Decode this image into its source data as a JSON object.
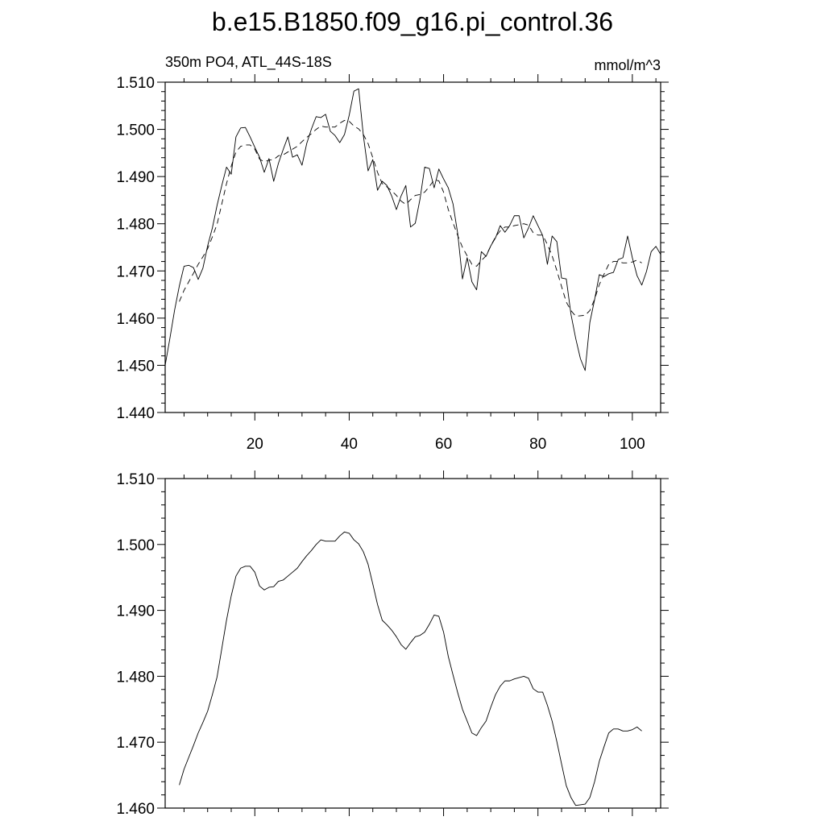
{
  "chart_data": [
    {
      "type": "line",
      "title": "b.e15.B1850.f09_g16.pi_control.36",
      "left_label": "350m PO4, ATL_44S-18S",
      "right_label": "mmol/m^3",
      "xlim": [
        1,
        106
      ],
      "xticks": [
        20,
        40,
        60,
        80,
        100
      ],
      "xminor": 3,
      "ylim": [
        1.44,
        1.51
      ],
      "yticks": [
        {
          "value": 1.44,
          "label": "1.440"
        },
        {
          "value": 1.45,
          "label": "1.450"
        },
        {
          "value": 1.46,
          "label": "1.460"
        },
        {
          "value": 1.47,
          "label": "1.470"
        },
        {
          "value": 1.48,
          "label": "1.480"
        },
        {
          "value": 1.49,
          "label": "1.490"
        },
        {
          "value": 1.5,
          "label": "1.500"
        },
        {
          "value": 1.51,
          "label": "1.510"
        }
      ],
      "yminor": 4,
      "series": [
        {
          "color": "#000000",
          "line_style": "solid",
          "x": [
            1,
            2,
            3,
            4,
            5,
            6,
            7,
            8,
            9,
            10,
            11,
            12,
            13,
            14,
            15,
            16,
            17,
            18,
            19,
            20,
            21,
            22,
            23,
            24,
            25,
            26,
            27,
            28,
            29,
            30,
            31,
            32,
            33,
            34,
            35,
            36,
            37,
            38,
            39,
            40,
            41,
            42,
            43,
            44,
            45,
            46,
            47,
            48,
            49,
            50,
            51,
            52,
            53,
            54,
            55,
            56,
            57,
            58,
            59,
            60,
            61,
            62,
            63,
            64,
            65,
            66,
            67,
            68,
            69,
            70,
            71,
            72,
            73,
            74,
            75,
            76,
            77,
            78,
            79,
            80,
            81,
            82,
            83,
            84,
            85,
            86,
            87,
            88,
            89,
            90,
            91,
            92,
            93,
            94,
            95,
            96,
            97,
            98,
            99,
            100,
            101,
            102,
            103,
            104,
            105,
            106
          ],
          "values": [
            1.45,
            1.4557,
            1.4617,
            1.4668,
            1.471,
            1.4712,
            1.4707,
            1.4682,
            1.4706,
            1.4753,
            1.4791,
            1.4839,
            1.4881,
            1.492,
            1.4905,
            1.4984,
            1.5003,
            1.5004,
            1.4984,
            1.4962,
            1.4941,
            1.4909,
            1.4938,
            1.489,
            1.4928,
            1.4957,
            1.4984,
            1.4941,
            1.4946,
            1.4924,
            1.497,
            1.5001,
            1.5027,
            1.5025,
            1.5032,
            1.4996,
            1.4987,
            1.4972,
            1.4989,
            1.503,
            1.5081,
            1.5086,
            1.4987,
            1.4912,
            1.4936,
            1.4871,
            1.489,
            1.4881,
            1.4859,
            1.483,
            1.4859,
            1.4881,
            1.4793,
            1.4801,
            1.4852,
            1.492,
            1.4917,
            1.4876,
            1.4916,
            1.4895,
            1.4876,
            1.4842,
            1.4779,
            1.4683,
            1.4728,
            1.4677,
            1.466,
            1.4741,
            1.4731,
            1.4753,
            1.477,
            1.4796,
            1.4782,
            1.4796,
            1.4817,
            1.4817,
            1.477,
            1.4791,
            1.4817,
            1.4796,
            1.4775,
            1.4714,
            1.4774,
            1.4762,
            1.4685,
            1.4683,
            1.4608,
            1.4557,
            1.4514,
            1.4489,
            1.4591,
            1.4639,
            1.4692,
            1.4688,
            1.4694,
            1.4697,
            1.4724,
            1.4728,
            1.4774,
            1.4728,
            1.469,
            1.467,
            1.4699,
            1.4741,
            1.4752,
            1.4735
          ]
        },
        {
          "color": "#000000",
          "line_style": "dashed",
          "x": [
            4,
            5,
            6,
            7,
            8,
            9,
            10,
            11,
            12,
            13,
            14,
            15,
            16,
            17,
            18,
            19,
            20,
            21,
            22,
            23,
            24,
            25,
            26,
            27,
            28,
            29,
            30,
            31,
            32,
            33,
            34,
            35,
            36,
            37,
            38,
            39,
            40,
            41,
            42,
            43,
            44,
            45,
            46,
            47,
            48,
            49,
            50,
            51,
            52,
            53,
            54,
            55,
            56,
            57,
            58,
            59,
            60,
            61,
            62,
            63,
            64,
            65,
            66,
            67,
            68,
            69,
            70,
            71,
            72,
            73,
            74,
            75,
            76,
            77,
            78,
            79,
            80,
            81,
            82,
            83,
            84,
            85,
            86,
            87,
            88,
            89,
            90,
            91,
            92,
            93,
            94,
            95,
            96,
            97,
            98,
            99,
            100,
            101,
            102
          ],
          "values": [
            1.4635,
            1.4659,
            1.4677,
            1.4695,
            1.4714,
            1.473,
            1.4747,
            1.4772,
            1.4799,
            1.4842,
            1.4885,
            1.4922,
            1.4952,
            1.4964,
            1.4967,
            1.4967,
            1.4958,
            1.4937,
            1.4931,
            1.4935,
            1.4936,
            1.4944,
            1.4946,
            1.4952,
            1.4958,
            1.4964,
            1.4974,
            1.4983,
            1.4991,
            1.5,
            1.5007,
            1.5005,
            1.5005,
            1.5005,
            1.5013,
            1.5019,
            1.5017,
            1.5007,
            1.5001,
            1.4989,
            1.497,
            1.494,
            1.4909,
            1.4885,
            1.4878,
            1.487,
            1.486,
            1.4848,
            1.4841,
            1.4851,
            1.486,
            1.4862,
            1.4867,
            1.4879,
            1.4893,
            1.4891,
            1.4867,
            1.483,
            1.4802,
            1.4775,
            1.475,
            1.4732,
            1.4714,
            1.471,
            1.4722,
            1.4732,
            1.4753,
            1.4772,
            1.4785,
            1.4793,
            1.4793,
            1.4796,
            1.4798,
            1.48,
            1.4797,
            1.4781,
            1.4776,
            1.4776,
            1.4756,
            1.4732,
            1.4701,
            1.4667,
            1.4634,
            1.4616,
            1.4604,
            1.4605,
            1.4606,
            1.4616,
            1.464,
            1.4671,
            1.4693,
            1.4714,
            1.472,
            1.472,
            1.4717,
            1.4717,
            1.4719,
            1.4723,
            1.4717
          ]
        }
      ]
    },
    {
      "type": "line",
      "xlim": [
        1,
        106
      ],
      "xticks": [
        20,
        40,
        60,
        80,
        100
      ],
      "xminor": 3,
      "xtick_labels": false,
      "ylim": [
        1.46,
        1.51
      ],
      "yticks": [
        {
          "value": 1.46,
          "label": "1.460"
        },
        {
          "value": 1.47,
          "label": "1.470"
        },
        {
          "value": 1.48,
          "label": "1.480"
        },
        {
          "value": 1.49,
          "label": "1.490"
        },
        {
          "value": 1.5,
          "label": "1.500"
        },
        {
          "value": 1.51,
          "label": "1.510"
        }
      ],
      "yminor": 4,
      "series": [
        {
          "color": "#000000",
          "line_style": "solid",
          "x": [
            4,
            5,
            6,
            7,
            8,
            9,
            10,
            11,
            12,
            13,
            14,
            15,
            16,
            17,
            18,
            19,
            20,
            21,
            22,
            23,
            24,
            25,
            26,
            27,
            28,
            29,
            30,
            31,
            32,
            33,
            34,
            35,
            36,
            37,
            38,
            39,
            40,
            41,
            42,
            43,
            44,
            45,
            46,
            47,
            48,
            49,
            50,
            51,
            52,
            53,
            54,
            55,
            56,
            57,
            58,
            59,
            60,
            61,
            62,
            63,
            64,
            65,
            66,
            67,
            68,
            69,
            70,
            71,
            72,
            73,
            74,
            75,
            76,
            77,
            78,
            79,
            80,
            81,
            82,
            83,
            84,
            85,
            86,
            87,
            88,
            89,
            90,
            91,
            92,
            93,
            94,
            95,
            96,
            97,
            98,
            99,
            100,
            101,
            102
          ],
          "values": [
            1.4635,
            1.4659,
            1.4677,
            1.4695,
            1.4714,
            1.473,
            1.4747,
            1.4772,
            1.4799,
            1.4842,
            1.4885,
            1.4922,
            1.4952,
            1.4964,
            1.4967,
            1.4967,
            1.4958,
            1.4937,
            1.4931,
            1.4935,
            1.4936,
            1.4944,
            1.4946,
            1.4952,
            1.4958,
            1.4964,
            1.4974,
            1.4983,
            1.4991,
            1.5,
            1.5007,
            1.5005,
            1.5005,
            1.5005,
            1.5013,
            1.5019,
            1.5017,
            1.5007,
            1.5001,
            1.4989,
            1.497,
            1.494,
            1.4909,
            1.4885,
            1.4878,
            1.487,
            1.486,
            1.4848,
            1.4841,
            1.4851,
            1.486,
            1.4862,
            1.4867,
            1.4879,
            1.4893,
            1.4891,
            1.4867,
            1.483,
            1.4802,
            1.4775,
            1.475,
            1.4732,
            1.4714,
            1.471,
            1.4722,
            1.4732,
            1.4753,
            1.4772,
            1.4785,
            1.4793,
            1.4793,
            1.4796,
            1.4798,
            1.48,
            1.4797,
            1.4781,
            1.4776,
            1.4776,
            1.4756,
            1.4732,
            1.4701,
            1.4667,
            1.4634,
            1.4616,
            1.4604,
            1.4605,
            1.4606,
            1.4616,
            1.464,
            1.4671,
            1.4693,
            1.4714,
            1.472,
            1.472,
            1.4717,
            1.4717,
            1.4719,
            1.4723,
            1.4717
          ]
        }
      ]
    }
  ]
}
